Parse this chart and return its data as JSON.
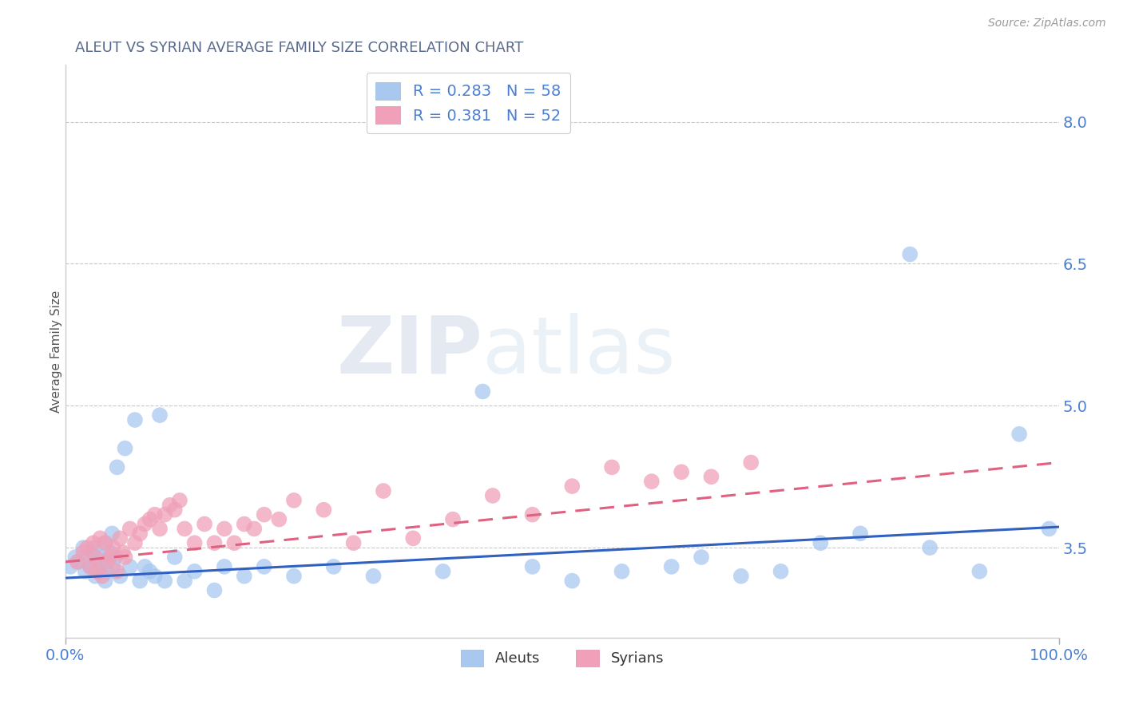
{
  "title": "ALEUT VS SYRIAN AVERAGE FAMILY SIZE CORRELATION CHART",
  "source_text": "Source: ZipAtlas.com",
  "ylabel": "Average Family Size",
  "xlim": [
    0,
    1
  ],
  "ylim": [
    2.55,
    8.6
  ],
  "yticks": [
    3.5,
    5.0,
    6.5,
    8.0
  ],
  "xticks": [
    0.0,
    1.0
  ],
  "xticklabels": [
    "0.0%",
    "100.0%"
  ],
  "watermark_zip": "ZIP",
  "watermark_atlas": "atlas",
  "title_color": "#5a6a8a",
  "title_fontsize": 13,
  "axis_color": "#4a7fd4",
  "scatter_aleut_color": "#a8c8f0",
  "scatter_syrian_color": "#f0a0b8",
  "line_aleut_color": "#3060c0",
  "line_syrian_color": "#e06080",
  "legend_R_aleut": "0.283",
  "legend_N_aleut": "58",
  "legend_R_syrian": "0.381",
  "legend_N_syrian": "52",
  "aleut_x": [
    0.005,
    0.01,
    0.013,
    0.018,
    0.02,
    0.022,
    0.025,
    0.027,
    0.03,
    0.03,
    0.032,
    0.035,
    0.036,
    0.038,
    0.04,
    0.04,
    0.042,
    0.045,
    0.047,
    0.048,
    0.05,
    0.052,
    0.055,
    0.06,
    0.065,
    0.07,
    0.075,
    0.08,
    0.085,
    0.09,
    0.095,
    0.1,
    0.11,
    0.12,
    0.13,
    0.15,
    0.16,
    0.18,
    0.2,
    0.23,
    0.27,
    0.31,
    0.38,
    0.42,
    0.47,
    0.51,
    0.56,
    0.61,
    0.64,
    0.68,
    0.72,
    0.76,
    0.8,
    0.85,
    0.87,
    0.92,
    0.96,
    0.99
  ],
  "aleut_y": [
    3.3,
    3.4,
    3.35,
    3.5,
    3.25,
    3.4,
    3.3,
    3.45,
    3.5,
    3.2,
    3.35,
    3.25,
    3.4,
    3.3,
    3.15,
    3.55,
    3.25,
    3.45,
    3.65,
    3.3,
    3.4,
    4.35,
    3.2,
    4.55,
    3.3,
    4.85,
    3.15,
    3.3,
    3.25,
    3.2,
    4.9,
    3.15,
    3.4,
    3.15,
    3.25,
    3.05,
    3.3,
    3.2,
    3.3,
    3.2,
    3.3,
    3.2,
    3.25,
    5.15,
    3.3,
    3.15,
    3.25,
    3.3,
    3.4,
    3.2,
    3.25,
    3.55,
    3.65,
    6.6,
    3.5,
    3.25,
    4.7,
    3.7
  ],
  "syrian_x": [
    0.012,
    0.018,
    0.022,
    0.025,
    0.028,
    0.03,
    0.032,
    0.035,
    0.037,
    0.04,
    0.042,
    0.045,
    0.048,
    0.052,
    0.055,
    0.058,
    0.06,
    0.065,
    0.07,
    0.075,
    0.08,
    0.085,
    0.09,
    0.095,
    0.1,
    0.105,
    0.11,
    0.115,
    0.12,
    0.13,
    0.14,
    0.15,
    0.16,
    0.17,
    0.18,
    0.19,
    0.2,
    0.215,
    0.23,
    0.26,
    0.29,
    0.32,
    0.35,
    0.39,
    0.43,
    0.47,
    0.51,
    0.55,
    0.59,
    0.62,
    0.65,
    0.69
  ],
  "syrian_y": [
    3.35,
    3.45,
    3.5,
    3.3,
    3.55,
    3.4,
    3.25,
    3.6,
    3.2,
    3.55,
    3.35,
    3.4,
    3.5,
    3.25,
    3.6,
    3.45,
    3.4,
    3.7,
    3.55,
    3.65,
    3.75,
    3.8,
    3.85,
    3.7,
    3.85,
    3.95,
    3.9,
    4.0,
    3.7,
    3.55,
    3.75,
    3.55,
    3.7,
    3.55,
    3.75,
    3.7,
    3.85,
    3.8,
    4.0,
    3.9,
    3.55,
    4.1,
    3.6,
    3.8,
    4.05,
    3.85,
    4.15,
    4.35,
    4.2,
    4.3,
    4.25,
    4.4
  ]
}
